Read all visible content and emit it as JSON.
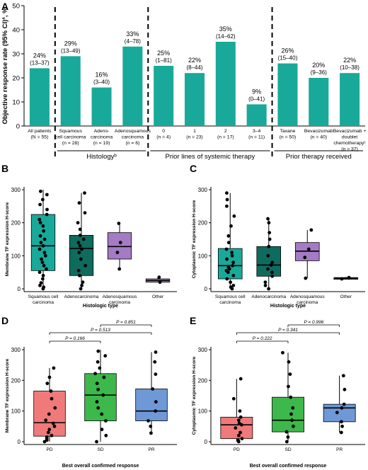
{
  "colors": {
    "teal": "#19A99A",
    "dark_teal": "#0F6B5E",
    "purple": "#A47BC4",
    "pd_red": "#F07A7A",
    "sd_green": "#3DB84A",
    "pr_blue": "#6E98D6"
  },
  "chart_data": [
    {
      "panel": "A",
      "type": "bar",
      "ylabel": "Objective response rate (95% CI)ª, %",
      "ylim": [
        0,
        50
      ],
      "categories": [
        {
          "lines": [
            "All patients",
            "(N = 55)"
          ],
          "value": 24,
          "label": "24%",
          "ci": "(13–37)"
        },
        {
          "lines": [
            "Squamous",
            "cell carcinoma",
            "(n = 28)"
          ],
          "value": 29,
          "label": "29%",
          "ci": "(13–49)"
        },
        {
          "lines": [
            "Adeno-",
            "carcinoma",
            "(n = 19)"
          ],
          "value": 16,
          "label": "16%",
          "ci": "(3–40)"
        },
        {
          "lines": [
            "Adenosquamous",
            "carcinoma",
            "(n = 6)"
          ],
          "value": 33,
          "label": "33%",
          "ci": "(4–78)"
        },
        {
          "lines": [
            "0",
            "(n = 4)"
          ],
          "value": 25,
          "label": "25%",
          "ci": "(1–81)"
        },
        {
          "lines": [
            "1",
            "(n = 23)"
          ],
          "value": 22,
          "label": "22%",
          "ci": "(8–44)"
        },
        {
          "lines": [
            "2",
            "(n = 17)"
          ],
          "value": 35,
          "label": "35%",
          "ci": "(14–62)"
        },
        {
          "lines": [
            "3–4",
            "(n = 11)"
          ],
          "value": 9,
          "label": "9%",
          "ci": "(0–41)"
        },
        {
          "lines": [
            "Taxane",
            "(n = 50)"
          ],
          "value": 26,
          "label": "26%",
          "ci": "(15–40)"
        },
        {
          "lines": [
            "Bevacizumab",
            "(n = 40)"
          ],
          "value": 20,
          "label": "20%",
          "ci": "(9–36)"
        },
        {
          "lines": [
            "Bevacizumab +",
            "doublet",
            "chemotherapyᶜ",
            "(n = 37)"
          ],
          "value": 22,
          "label": "22%",
          "ci": "(10–38)"
        }
      ],
      "groups": [
        {
          "label": "Histologyᵇ",
          "from": 1,
          "to": 3
        },
        {
          "label": "Prior lines of systemic therapy",
          "from": 4,
          "to": 7
        },
        {
          "label": "Prior therapy received",
          "from": 8,
          "to": 10
        }
      ]
    },
    {
      "panel": "B",
      "type": "box",
      "ylabel": "Membrane TF expression H-score",
      "xlabel": "Histologic type",
      "ylim": [
        0,
        300
      ],
      "yticks": [
        0,
        100,
        200,
        300
      ],
      "boxes": [
        {
          "lines": [
            "Squamous cell",
            "carcinoma"
          ],
          "color": "teal",
          "min": 0,
          "q1": 55,
          "median": 130,
          "q3": 225,
          "max": 300,
          "points": [
            0,
            5,
            10,
            18,
            30,
            40,
            50,
            60,
            70,
            80,
            90,
            100,
            110,
            120,
            130,
            140,
            150,
            160,
            175,
            190,
            200,
            210,
            225,
            240,
            255,
            270,
            285,
            295
          ]
        },
        {
          "lines": [
            "Adenocarcinoma"
          ],
          "color": "dark_teal",
          "min": 0,
          "q1": 40,
          "median": 122,
          "q3": 162,
          "max": 290,
          "points": [
            0,
            10,
            20,
            40,
            55,
            70,
            90,
            110,
            120,
            130,
            140,
            150,
            162,
            180,
            200,
            230,
            260,
            290
          ]
        },
        {
          "lines": [
            "Adenosquamous",
            "carcinoma"
          ],
          "color": "purple",
          "min": 60,
          "q1": 90,
          "median": 128,
          "q3": 170,
          "max": 198,
          "points": [
            60,
            110,
            140,
            198
          ]
        },
        {
          "lines": [
            "Other"
          ],
          "color": "purple",
          "min": 20,
          "q1": 20,
          "median": 25,
          "q3": 30,
          "max": 35,
          "points": [
            20,
            35
          ]
        }
      ]
    },
    {
      "panel": "C",
      "type": "box",
      "ylabel": "Cytoplasmic TF expression H-score",
      "xlabel": "Histologic type",
      "ylim": [
        0,
        300
      ],
      "yticks": [
        0,
        100,
        200,
        300
      ],
      "boxes": [
        {
          "lines": [
            "Squamous cell",
            "carcinoma"
          ],
          "color": "teal",
          "min": 0,
          "q1": 30,
          "median": 70,
          "q3": 122,
          "max": 290,
          "points": [
            0,
            5,
            10,
            20,
            30,
            40,
            50,
            55,
            60,
            65,
            70,
            80,
            90,
            100,
            110,
            120,
            140,
            160,
            190,
            220,
            250,
            270,
            290
          ]
        },
        {
          "lines": [
            "Adenocarcinoma"
          ],
          "color": "dark_teal",
          "min": 0,
          "q1": 38,
          "median": 72,
          "q3": 128,
          "max": 212,
          "points": [
            0,
            10,
            20,
            38,
            50,
            60,
            72,
            80,
            100,
            128,
            150,
            170,
            200,
            212
          ]
        },
        {
          "lines": [
            "Adenosquamous",
            "carcinoma"
          ],
          "color": "purple",
          "min": 32,
          "q1": 85,
          "median": 114,
          "q3": 140,
          "max": 178,
          "points": [
            32,
            95,
            120,
            178
          ]
        },
        {
          "lines": [
            "Other"
          ],
          "color": "purple",
          "min": 28,
          "q1": 30,
          "median": 32,
          "q3": 34,
          "max": 36,
          "points": [
            30,
            34
          ]
        }
      ]
    },
    {
      "panel": "D",
      "type": "box",
      "ylabel": "Membrane TF expression H-score",
      "xlabel": "Best overall confirmed response",
      "ylim": [
        0,
        300
      ],
      "yticks": [
        0,
        100,
        200,
        300
      ],
      "boxes": [
        {
          "lines": [
            "PD"
          ],
          "color": "pd_red",
          "min": 0,
          "q1": 18,
          "median": 62,
          "q3": 165,
          "max": 240,
          "points": [
            0,
            5,
            10,
            15,
            20,
            30,
            40,
            50,
            60,
            70,
            90,
            110,
            140,
            165,
            190,
            210,
            240
          ]
        },
        {
          "lines": [
            "SD"
          ],
          "color": "sd_green",
          "min": 0,
          "q1": 68,
          "median": 152,
          "q3": 222,
          "max": 300,
          "points": [
            0,
            20,
            40,
            68,
            90,
            110,
            130,
            152,
            170,
            190,
            210,
            222,
            240,
            260,
            280,
            295
          ]
        },
        {
          "lines": [
            "PR"
          ],
          "color": "pr_blue",
          "min": 28,
          "q1": 68,
          "median": 100,
          "q3": 172,
          "max": 292,
          "points": [
            28,
            50,
            68,
            100,
            130,
            172,
            220,
            260,
            292
          ]
        }
      ],
      "comparisons": [
        {
          "from": 0,
          "to": 1,
          "label": "P = 0.166"
        },
        {
          "from": 0,
          "to": 2,
          "label": "P = 0.513"
        },
        {
          "from": 1,
          "to": 2,
          "label": "P = 0.851"
        }
      ]
    },
    {
      "panel": "E",
      "type": "box",
      "ylabel": "Cytoplasmic TF expression H-score",
      "xlabel": "Best overall confirmed response",
      "ylim": [
        0,
        300
      ],
      "yticks": [
        0,
        100,
        200,
        300
      ],
      "boxes": [
        {
          "lines": [
            "PD"
          ],
          "color": "pd_red",
          "min": 0,
          "q1": 10,
          "median": 55,
          "q3": 80,
          "max": 205,
          "points": [
            0,
            5,
            10,
            20,
            30,
            45,
            55,
            60,
            70,
            80,
            100,
            140,
            205
          ]
        },
        {
          "lines": [
            "SD"
          ],
          "color": "sd_green",
          "min": 0,
          "q1": 32,
          "median": 70,
          "q3": 145,
          "max": 290,
          "points": [
            0,
            15,
            32,
            50,
            70,
            90,
            110,
            145,
            180,
            220,
            260,
            290
          ]
        },
        {
          "lines": [
            "PR"
          ],
          "color": "pr_blue",
          "min": 30,
          "q1": 65,
          "median": 110,
          "q3": 122,
          "max": 215,
          "points": [
            30,
            50,
            65,
            95,
            110,
            122,
            170,
            215
          ]
        }
      ],
      "comparisons": [
        {
          "from": 0,
          "to": 1,
          "label": "P = 0.222"
        },
        {
          "from": 0,
          "to": 2,
          "label": "P = 0.341"
        },
        {
          "from": 1,
          "to": 2,
          "label": "P = 0.996"
        }
      ]
    }
  ]
}
